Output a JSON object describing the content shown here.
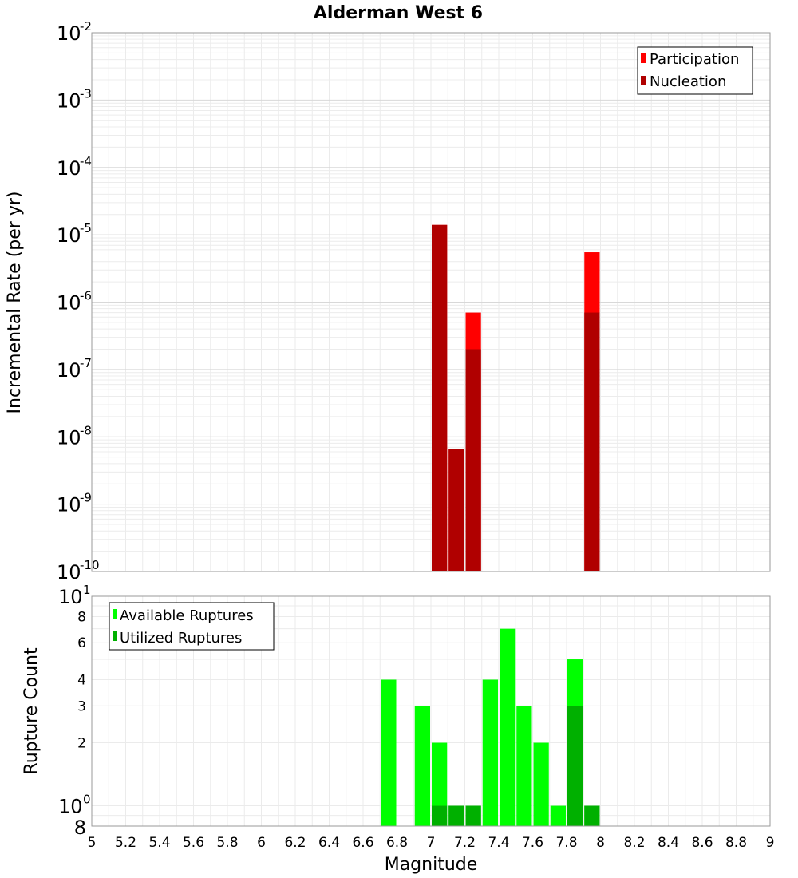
{
  "chart_data": [
    {
      "type": "bar",
      "panel": "top",
      "title": "Alderman West 6",
      "xlabel": "Magnitude",
      "ylabel": "Incremental Rate (per yr)",
      "yscale": "log",
      "xlim": [
        5,
        9
      ],
      "ylim": [
        1e-10,
        0.01
      ],
      "bin_width": 0.1,
      "y_tick_mantissa": [
        "10",
        "10",
        "10",
        "10",
        "10",
        "10",
        "10",
        "10",
        "10"
      ],
      "y_tick_exponents": [
        "-2",
        "-3",
        "-4",
        "-5",
        "-6",
        "-7",
        "-8",
        "-9",
        "-10"
      ],
      "legend": [
        "Participation",
        "Nucleation"
      ],
      "colors": {
        "Participation": "#ff0000",
        "Nucleation": "#b00000"
      },
      "series": [
        {
          "name": "Participation",
          "x": [
            7.05,
            7.15,
            7.25,
            7.95
          ],
          "values": [
            1.4e-05,
            6.5e-09,
            7e-07,
            5.5e-06
          ]
        },
        {
          "name": "Nucleation",
          "x": [
            7.05,
            7.15,
            7.25,
            7.95
          ],
          "values": [
            1.4e-05,
            6.5e-09,
            2e-07,
            7e-07
          ]
        }
      ]
    },
    {
      "type": "bar",
      "panel": "bottom",
      "xlabel": "Magnitude",
      "ylabel": "Rupture Count",
      "yscale": "log",
      "xlim": [
        5,
        9
      ],
      "ylim": [
        0.8,
        10
      ],
      "bin_width": 0.1,
      "x_ticks": [
        "5",
        "5.2",
        "5.4",
        "5.6",
        "5.8",
        "6",
        "6.2",
        "6.4",
        "6.6",
        "6.8",
        "7",
        "7.2",
        "7.4",
        "7.6",
        "7.8",
        "8",
        "8.2",
        "8.4",
        "8.6",
        "8.8",
        "9"
      ],
      "y_ticks_minor": [
        "8",
        "6",
        "4",
        "3",
        "2"
      ],
      "y_tick_bottom": "8",
      "y_tick_major": [
        {
          "mantissa": "10",
          "exponent": "1"
        },
        {
          "mantissa": "10",
          "exponent": "0"
        }
      ],
      "legend": [
        "Available Ruptures",
        "Utilized Ruptures"
      ],
      "colors": {
        "Available Ruptures": "#00ff00",
        "Utilized Ruptures": "#00b000"
      },
      "series": [
        {
          "name": "Available Ruptures",
          "x": [
            6.75,
            6.95,
            7.05,
            7.15,
            7.25,
            7.35,
            7.45,
            7.55,
            7.65,
            7.75,
            7.85,
            7.95
          ],
          "values": [
            4,
            3,
            2,
            1,
            1,
            4,
            7,
            3,
            2,
            1,
            5,
            1
          ]
        },
        {
          "name": "Utilized Ruptures",
          "x": [
            7.05,
            7.15,
            7.25,
            7.85,
            7.95
          ],
          "values": [
            1,
            1,
            1,
            3,
            1
          ]
        }
      ]
    }
  ]
}
